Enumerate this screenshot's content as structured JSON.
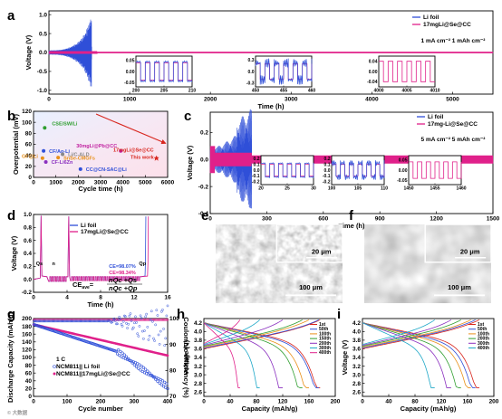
{
  "colors": {
    "li": "#2f4fd8",
    "se": "#e0208a",
    "red": "#d8261e",
    "green": "#2f9e2f",
    "orange": "#e8901a",
    "purple": "#8a2fbf",
    "blue": "#2f4fd8",
    "magenta": "#c020a0",
    "gray": "#888888"
  },
  "chart_data": [
    {
      "id": "a",
      "type": "line",
      "xlabel": "Time (h)",
      "ylabel": "Voltage (V)",
      "xlim": [
        0,
        5500
      ],
      "ylim": [
        -1.1,
        1.1
      ],
      "xticks": [
        "0",
        "1000",
        "2000",
        "3000",
        "4000",
        "5000"
      ],
      "yticks": [
        "1.0",
        "0.5",
        "0.0",
        "-0.5",
        "-1.0"
      ],
      "legend": [
        "Li foil",
        "17mgLi@Se@CC"
      ],
      "note": "1 mA cm⁻²  1 mAh cm⁻²",
      "series": [
        {
          "name": "Li foil",
          "x_end_h": 530,
          "amplitude_v": [
            0.08,
            0.9
          ]
        },
        {
          "name": "17mgLi@Se@CC",
          "x_end_h": 5500,
          "amplitude_v": 0.02
        }
      ],
      "insets": [
        {
          "xticks": [
            "200",
            "205",
            "210"
          ],
          "yticks": [
            "0.05",
            "0.00",
            "-0.05"
          ]
        },
        {
          "xticks": [
            "450",
            "455",
            "460"
          ],
          "yticks": [
            "0.3",
            "0.0",
            "-0.3"
          ]
        },
        {
          "xticks": [
            "4000",
            "4005",
            "4010"
          ],
          "yticks": [
            "0.04",
            "0.00",
            "-0.04"
          ]
        }
      ]
    },
    {
      "id": "b",
      "type": "scatter",
      "xlabel": "Cycle time (h)",
      "ylabel": "Overpotential (mV)",
      "xlim": [
        0,
        6000
      ],
      "ylim": [
        0,
        120
      ],
      "xticks": [
        "0",
        "1000",
        "2000",
        "3000",
        "4000",
        "5000",
        "6000"
      ],
      "yticks": [
        "0",
        "20",
        "40",
        "60",
        "80",
        "100",
        "120"
      ],
      "points": [
        {
          "label": "CSE/SW/Li",
          "x": 500,
          "y": 90,
          "color": "green"
        },
        {
          "label": "CF/Ag-Li",
          "x": 450,
          "y": 48,
          "color": "blue"
        },
        {
          "label": "Li/C-ALD",
          "x": 1300,
          "y": 42,
          "color": "gray"
        },
        {
          "label": "SnSe-CMGFs",
          "x": 1100,
          "y": 36,
          "color": "orange"
        },
        {
          "label": "GF@Li",
          "x": 400,
          "y": 35,
          "color": "orange"
        },
        {
          "label": "CF-Li6Zn",
          "x": 550,
          "y": 28,
          "color": "purple"
        },
        {
          "label": "CC@CN-SAC@Li",
          "x": 2100,
          "y": 15,
          "color": "blue"
        },
        {
          "label": "30mgLi@Pb@CC",
          "x": 3900,
          "y": 48,
          "color": "magenta"
        },
        {
          "label": "17mgLi@Se@CC This work",
          "x": 5500,
          "y": 35,
          "color": "red"
        }
      ]
    },
    {
      "id": "c",
      "type": "line",
      "xlabel": "Time (h)",
      "ylabel": "Voltage (V)",
      "xlim": [
        0,
        1500
      ],
      "ylim": [
        -0.4,
        0.35
      ],
      "xticks": [
        "0",
        "300",
        "600",
        "900",
        "1200",
        "1500"
      ],
      "yticks": [
        "0.2",
        "0.0",
        "-0.2",
        "-0.4"
      ],
      "legend": [
        "Li foil",
        "17mg-Li@Se@CC"
      ],
      "note": "5 mA cm⁻²  5 mAh cm⁻²",
      "insets": [
        {
          "xticks": [
            "20",
            "25",
            "30"
          ],
          "yticks": [
            "0.2",
            "0.1",
            "0.0",
            "-0.1",
            "-0.2"
          ]
        },
        {
          "xticks": [
            "100",
            "105",
            "110"
          ],
          "yticks": [
            "0.2",
            "0.1",
            "0.0",
            "-0.1",
            "-0.2"
          ]
        },
        {
          "xticks": [
            "1450",
            "1455",
            "1460"
          ],
          "yticks": [
            "0.05",
            "0.00",
            "-0.05"
          ]
        }
      ]
    },
    {
      "id": "d",
      "type": "line",
      "xlabel": "Time (h)",
      "ylabel": "Voltage (V)",
      "xlim": [
        0,
        16
      ],
      "ylim": [
        -0.2,
        1.0
      ],
      "xticks": [
        "0",
        "4",
        "8",
        "12",
        "16"
      ],
      "yticks": [
        "-0.2",
        "0.0",
        "0.2",
        "0.4",
        "0.6",
        "0.8",
        "1.0"
      ],
      "legend": [
        "Li foil",
        "17mgLi@Se@CC"
      ],
      "ce_li": "CE=98.07%",
      "ce_se": "CE=98.34%",
      "formula_left": "CE",
      "formula_sub": "ave",
      "formula_num": "nQ",
      "formula_num_sub": "c",
      "formula_num_tail": " +Qs",
      "formula_den": "nQ",
      "formula_den_sub": "c",
      "formula_den_tail": " +Qp",
      "q_labels": [
        "Qs",
        "n",
        "Qc",
        "Qp"
      ]
    },
    {
      "id": "g",
      "type": "scatter",
      "xlabel": "Cycle number",
      "ylabel": "Discharge Capacity (mAh/g)",
      "y2label": "Coulombic efficiency (%)",
      "xlim": [
        0,
        400
      ],
      "ylim": [
        0,
        200
      ],
      "y2lim": [
        70,
        100
      ],
      "xticks": [
        "0",
        "100",
        "200",
        "300",
        "400"
      ],
      "yticks": [
        "0",
        "20",
        "40",
        "60",
        "80",
        "100",
        "120",
        "140",
        "160",
        "180",
        "200"
      ],
      "y2ticks": [
        "70",
        "80",
        "90",
        "100"
      ],
      "legend": [
        "1 C",
        "NCM811|| Li foil",
        "NCM811||17mgLi@Se@CC"
      ]
    },
    {
      "id": "h",
      "type": "line",
      "xlabel": "Capacity (mAh/g)",
      "ylabel": "Voltage (V)",
      "xlim": [
        0,
        200
      ],
      "ylim": [
        2.5,
        4.3
      ],
      "xticks": [
        "0",
        "40",
        "80",
        "120",
        "160",
        "200"
      ],
      "yticks": [
        "2.6",
        "2.8",
        "3.0",
        "3.2",
        "3.4",
        "3.6",
        "3.8",
        "4.0",
        "4.2"
      ],
      "legend": [
        "1st",
        "50th",
        "100th",
        "150th",
        "200th",
        "300th",
        "400th"
      ],
      "end_caps": [
        177,
        175,
        160,
        150,
        120,
        85,
        55
      ]
    },
    {
      "id": "i",
      "type": "line",
      "xlabel": "Capacity (mAh/g)",
      "ylabel": "Voltage (V)",
      "xlim": [
        0,
        200
      ],
      "ylim": [
        2.5,
        4.3
      ],
      "xticks": [
        "0",
        "40",
        "80",
        "120",
        "160",
        "200"
      ],
      "yticks": [
        "2.6",
        "2.8",
        "3.0",
        "3.2",
        "3.4",
        "3.6",
        "3.8",
        "4.0",
        "4.2"
      ],
      "legend": [
        "1st",
        "50th",
        "100th",
        "200th",
        "300th",
        "400th"
      ],
      "end_caps": [
        178,
        172,
        165,
        150,
        135,
        110
      ]
    }
  ],
  "sem": {
    "e": {
      "inset_scale": "20 μm",
      "scale": "100 μm"
    },
    "f": {
      "inset_scale": "20 μm",
      "scale": "100 μm"
    }
  },
  "panel_labels": [
    "a",
    "b",
    "c",
    "d",
    "e",
    "f",
    "g",
    "h",
    "i"
  ],
  "watermark": "© 大数据"
}
